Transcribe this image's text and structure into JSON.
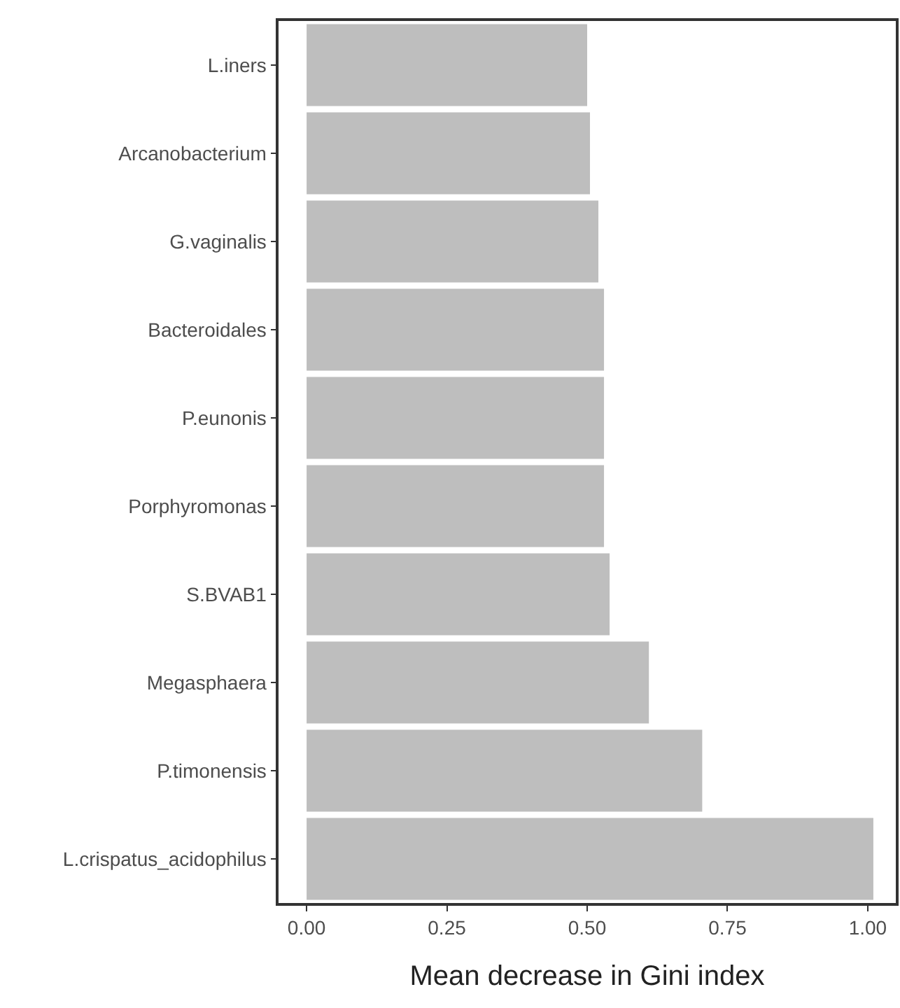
{
  "chart_data": {
    "type": "bar",
    "orientation": "horizontal",
    "xlabel": "Mean decrease in Gini index",
    "categories": [
      "L.iners",
      "Arcanobacterium",
      "G.vaginalis",
      "Bacteroidales",
      "P.eunonis",
      "Porphyromonas",
      "S.BVAB1",
      "Megasphaera",
      "P.timonensis",
      "L.crispatus_acidophilus"
    ],
    "values": [
      0.5,
      0.505,
      0.52,
      0.53,
      0.53,
      0.53,
      0.54,
      0.61,
      0.705,
      1.01
    ],
    "color": "#bebebe",
    "xlim": [
      -0.05,
      1.05
    ],
    "xticks": [
      {
        "value": 0,
        "label": "0.00"
      },
      {
        "value": 0.25,
        "label": "0.25"
      },
      {
        "value": 0.5,
        "label": "0.50"
      },
      {
        "value": 0.75,
        "label": "0.75"
      },
      {
        "value": 1,
        "label": "1.00"
      }
    ],
    "legend": false
  }
}
